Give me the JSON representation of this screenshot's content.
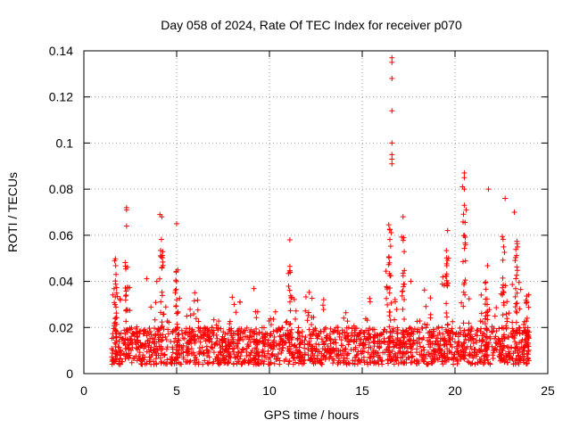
{
  "chart_data": {
    "type": "scatter",
    "title": "Day 058 of 2024, Rate Of TEC Index for receiver p070",
    "xlabel": "GPS time / hours",
    "ylabel": "ROTI / TECUs",
    "xlim": [
      0,
      25
    ],
    "ylim": [
      0,
      0.14
    ],
    "x_ticks": [
      0,
      5,
      10,
      15,
      20,
      25
    ],
    "x_tick_labels": [
      "0",
      "5",
      "10",
      "15",
      "20",
      "25"
    ],
    "y_ticks": [
      0,
      0.02,
      0.04,
      0.06,
      0.08,
      0.1,
      0.12,
      0.14
    ],
    "y_tick_labels": [
      "0",
      "0.02",
      "0.04",
      "0.06",
      "0.08",
      "0.1",
      "0.12",
      "0.14"
    ],
    "grid": true,
    "marker": "+",
    "marker_color": "#ff0000",
    "x_data_range": [
      1.5,
      24.0
    ],
    "series": [
      {
        "name": "ROTI",
        "note": "dense band of ~0.003-0.035 TECU/s across the day; notable outliers listed",
        "outliers": [
          {
            "x": 2.3,
            "y": 0.072
          },
          {
            "x": 2.3,
            "y": 0.071
          },
          {
            "x": 2.3,
            "y": 0.064
          },
          {
            "x": 4.1,
            "y": 0.069
          },
          {
            "x": 4.2,
            "y": 0.068
          },
          {
            "x": 5.0,
            "y": 0.065
          },
          {
            "x": 11.1,
            "y": 0.058
          },
          {
            "x": 16.6,
            "y": 0.137
          },
          {
            "x": 16.6,
            "y": 0.135
          },
          {
            "x": 16.6,
            "y": 0.128
          },
          {
            "x": 16.6,
            "y": 0.114
          },
          {
            "x": 16.6,
            "y": 0.1
          },
          {
            "x": 16.6,
            "y": 0.095
          },
          {
            "x": 16.6,
            "y": 0.093
          },
          {
            "x": 16.6,
            "y": 0.091
          },
          {
            "x": 17.2,
            "y": 0.068
          },
          {
            "x": 19.6,
            "y": 0.062
          },
          {
            "x": 20.5,
            "y": 0.087
          },
          {
            "x": 20.5,
            "y": 0.085
          },
          {
            "x": 20.4,
            "y": 0.081
          },
          {
            "x": 20.5,
            "y": 0.08
          },
          {
            "x": 20.5,
            "y": 0.073
          },
          {
            "x": 20.6,
            "y": 0.071
          },
          {
            "x": 21.8,
            "y": 0.08
          },
          {
            "x": 22.7,
            "y": 0.076
          },
          {
            "x": 23.2,
            "y": 0.07
          }
        ]
      }
    ]
  }
}
